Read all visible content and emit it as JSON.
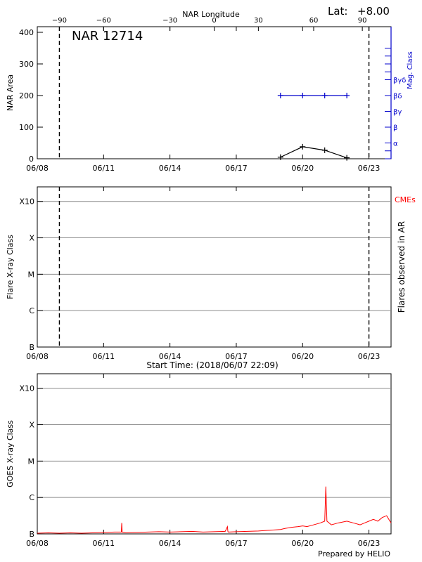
{
  "header": {
    "lat_label": "Lat:",
    "lat_value": "+8.00",
    "region_title": "NAR 12714",
    "footer_credit": "Prepared by HELIO"
  },
  "chart_data": [
    {
      "type": "line",
      "panel": "nar-area",
      "title": "NAR 12714",
      "xlabel": "",
      "ylabel": "NAR Area",
      "y2label": "Mag. Class",
      "top_axis_label": "NAR Longitude",
      "xlim": [
        0,
        16
      ],
      "x_ticks": [
        {
          "x": 0,
          "label": "06/08"
        },
        {
          "x": 3,
          "label": "06/11"
        },
        {
          "x": 6,
          "label": "06/14"
        },
        {
          "x": 9,
          "label": "06/17"
        },
        {
          "x": 12,
          "label": "06/20"
        },
        {
          "x": 15,
          "label": "06/23"
        }
      ],
      "ylim": [
        0,
        400
      ],
      "y_ticks": [
        0,
        100,
        200,
        300,
        400
      ],
      "top_ticks": [
        {
          "x": 1,
          "label": "−90"
        },
        {
          "x": 3,
          "label": "−60"
        },
        {
          "x": 6,
          "label": "−30"
        },
        {
          "x": 8,
          "label": "0"
        },
        {
          "x": 10,
          "label": "30"
        },
        {
          "x": 12.5,
          "label": "60"
        },
        {
          "x": 14.7,
          "label": "90"
        }
      ],
      "mag_class_ticks": [
        {
          "y": 50,
          "label": "α"
        },
        {
          "y": 100,
          "label": "β"
        },
        {
          "y": 150,
          "label": "βγ"
        },
        {
          "y": 200,
          "label": "βδ"
        },
        {
          "y": 250,
          "label": "βγδ"
        }
      ],
      "dashed_markers_x": [
        1,
        15
      ],
      "series": [
        {
          "color": "#000000",
          "x": [
            11,
            12,
            13,
            14
          ],
          "y": [
            5,
            38,
            27,
            3
          ]
        },
        {
          "color": "#0000cc",
          "x": [
            11,
            12,
            13,
            14
          ],
          "y": [
            200,
            200,
            200,
            200
          ]
        }
      ]
    },
    {
      "type": "scatter",
      "panel": "flares",
      "xlabel": "Start Time: (2018/06/07 22:09)",
      "ylabel": "Flare X-ray Class",
      "y2label": "Flares observed in AR",
      "legend": "CMEs",
      "legend_color": "#ff0000",
      "xlim": [
        0,
        16
      ],
      "x_ticks": [
        {
          "x": 0,
          "label": "06/08"
        },
        {
          "x": 3,
          "label": "06/11"
        },
        {
          "x": 6,
          "label": "06/14"
        },
        {
          "x": 9,
          "label": "06/17"
        },
        {
          "x": 12,
          "label": "06/20"
        },
        {
          "x": 15,
          "label": "06/23"
        }
      ],
      "y_ticks": [
        "B",
        "C",
        "M",
        "X",
        "X10"
      ],
      "dashed_markers_x": [
        1,
        15
      ],
      "series": []
    },
    {
      "type": "line",
      "panel": "goes",
      "xlabel": "Start Time: (2018/06/07 22:09)",
      "ylabel": "GOES X-ray Class",
      "xlim": [
        0,
        16
      ],
      "x_ticks": [
        {
          "x": 0,
          "label": "06/08"
        },
        {
          "x": 3,
          "label": "06/11"
        },
        {
          "x": 6,
          "label": "06/14"
        },
        {
          "x": 9,
          "label": "06/17"
        },
        {
          "x": 12,
          "label": "06/20"
        },
        {
          "x": 15,
          "label": "06/23"
        }
      ],
      "y_ticks": [
        "B",
        "C",
        "M",
        "X",
        "X10"
      ],
      "ylim_class": [
        0,
        4.4
      ],
      "series": [
        {
          "color": "#ff0000",
          "x": [
            0.0,
            0.5,
            1.0,
            1.5,
            2.0,
            2.5,
            3.0,
            3.5,
            3.8,
            3.82,
            3.84,
            4.0,
            4.5,
            5.0,
            5.5,
            6.0,
            6.5,
            7.0,
            7.5,
            8.0,
            8.5,
            8.6,
            8.62,
            8.64,
            9.0,
            9.5,
            10.0,
            10.5,
            11.0,
            11.2,
            11.5,
            11.8,
            12.0,
            12.2,
            12.5,
            12.8,
            13.0,
            13.05,
            13.1,
            13.3,
            13.6,
            14.0,
            14.3,
            14.6,
            14.8,
            15.0,
            15.2,
            15.4,
            15.6,
            15.8,
            16.0
          ],
          "y": [
            0.02,
            0.03,
            0.02,
            0.03,
            0.02,
            0.03,
            0.04,
            0.05,
            0.05,
            0.3,
            0.05,
            0.03,
            0.04,
            0.05,
            0.06,
            0.05,
            0.06,
            0.07,
            0.05,
            0.06,
            0.07,
            0.2,
            0.07,
            0.05,
            0.06,
            0.07,
            0.08,
            0.1,
            0.12,
            0.15,
            0.18,
            0.2,
            0.22,
            0.2,
            0.25,
            0.3,
            0.35,
            1.3,
            0.35,
            0.25,
            0.3,
            0.35,
            0.3,
            0.25,
            0.3,
            0.35,
            0.4,
            0.35,
            0.45,
            0.5,
            0.3
          ]
        }
      ]
    }
  ]
}
